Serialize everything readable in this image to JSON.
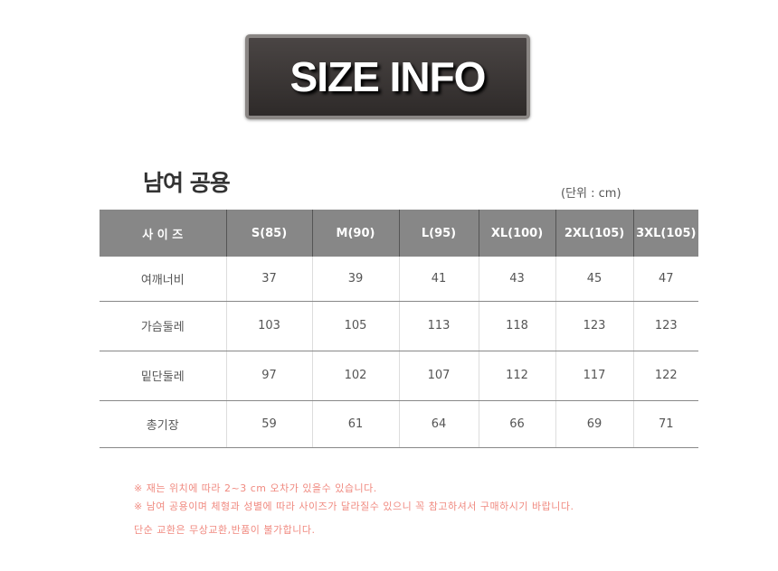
{
  "banner": {
    "title": "SIZE INFO"
  },
  "subtitle": "남여 공용",
  "unit": "(단위 : cm)",
  "table": {
    "headers": [
      "사  이  즈",
      "S(85)",
      "M(90)",
      "L(95)",
      "XL(100)",
      "2XL(105)",
      "3XL(105)"
    ],
    "rows": [
      [
        "여깨너비",
        "37",
        "39",
        "41",
        "43",
        "45",
        "47"
      ],
      [
        "가슴둘레",
        "103",
        "105",
        "113",
        "118",
        "123",
        "123"
      ],
      [
        "밑단둘레",
        "97",
        "102",
        "107",
        "112",
        "117",
        "122"
      ],
      [
        "총기장",
        "59",
        "61",
        "64",
        "66",
        "69",
        "71"
      ]
    ]
  },
  "notes": [
    "※ 재는 위치에 따라 2~3 cm 오차가 있을수 있습니다.",
    "※ 남여 공용이며 체형과 성별에 따라 사이즈가 달라질수 있으니 꼭 참고하셔서 구매하시기 바랍니다.",
    "단순 교환은 무상교환,반품이 불가합니다."
  ]
}
